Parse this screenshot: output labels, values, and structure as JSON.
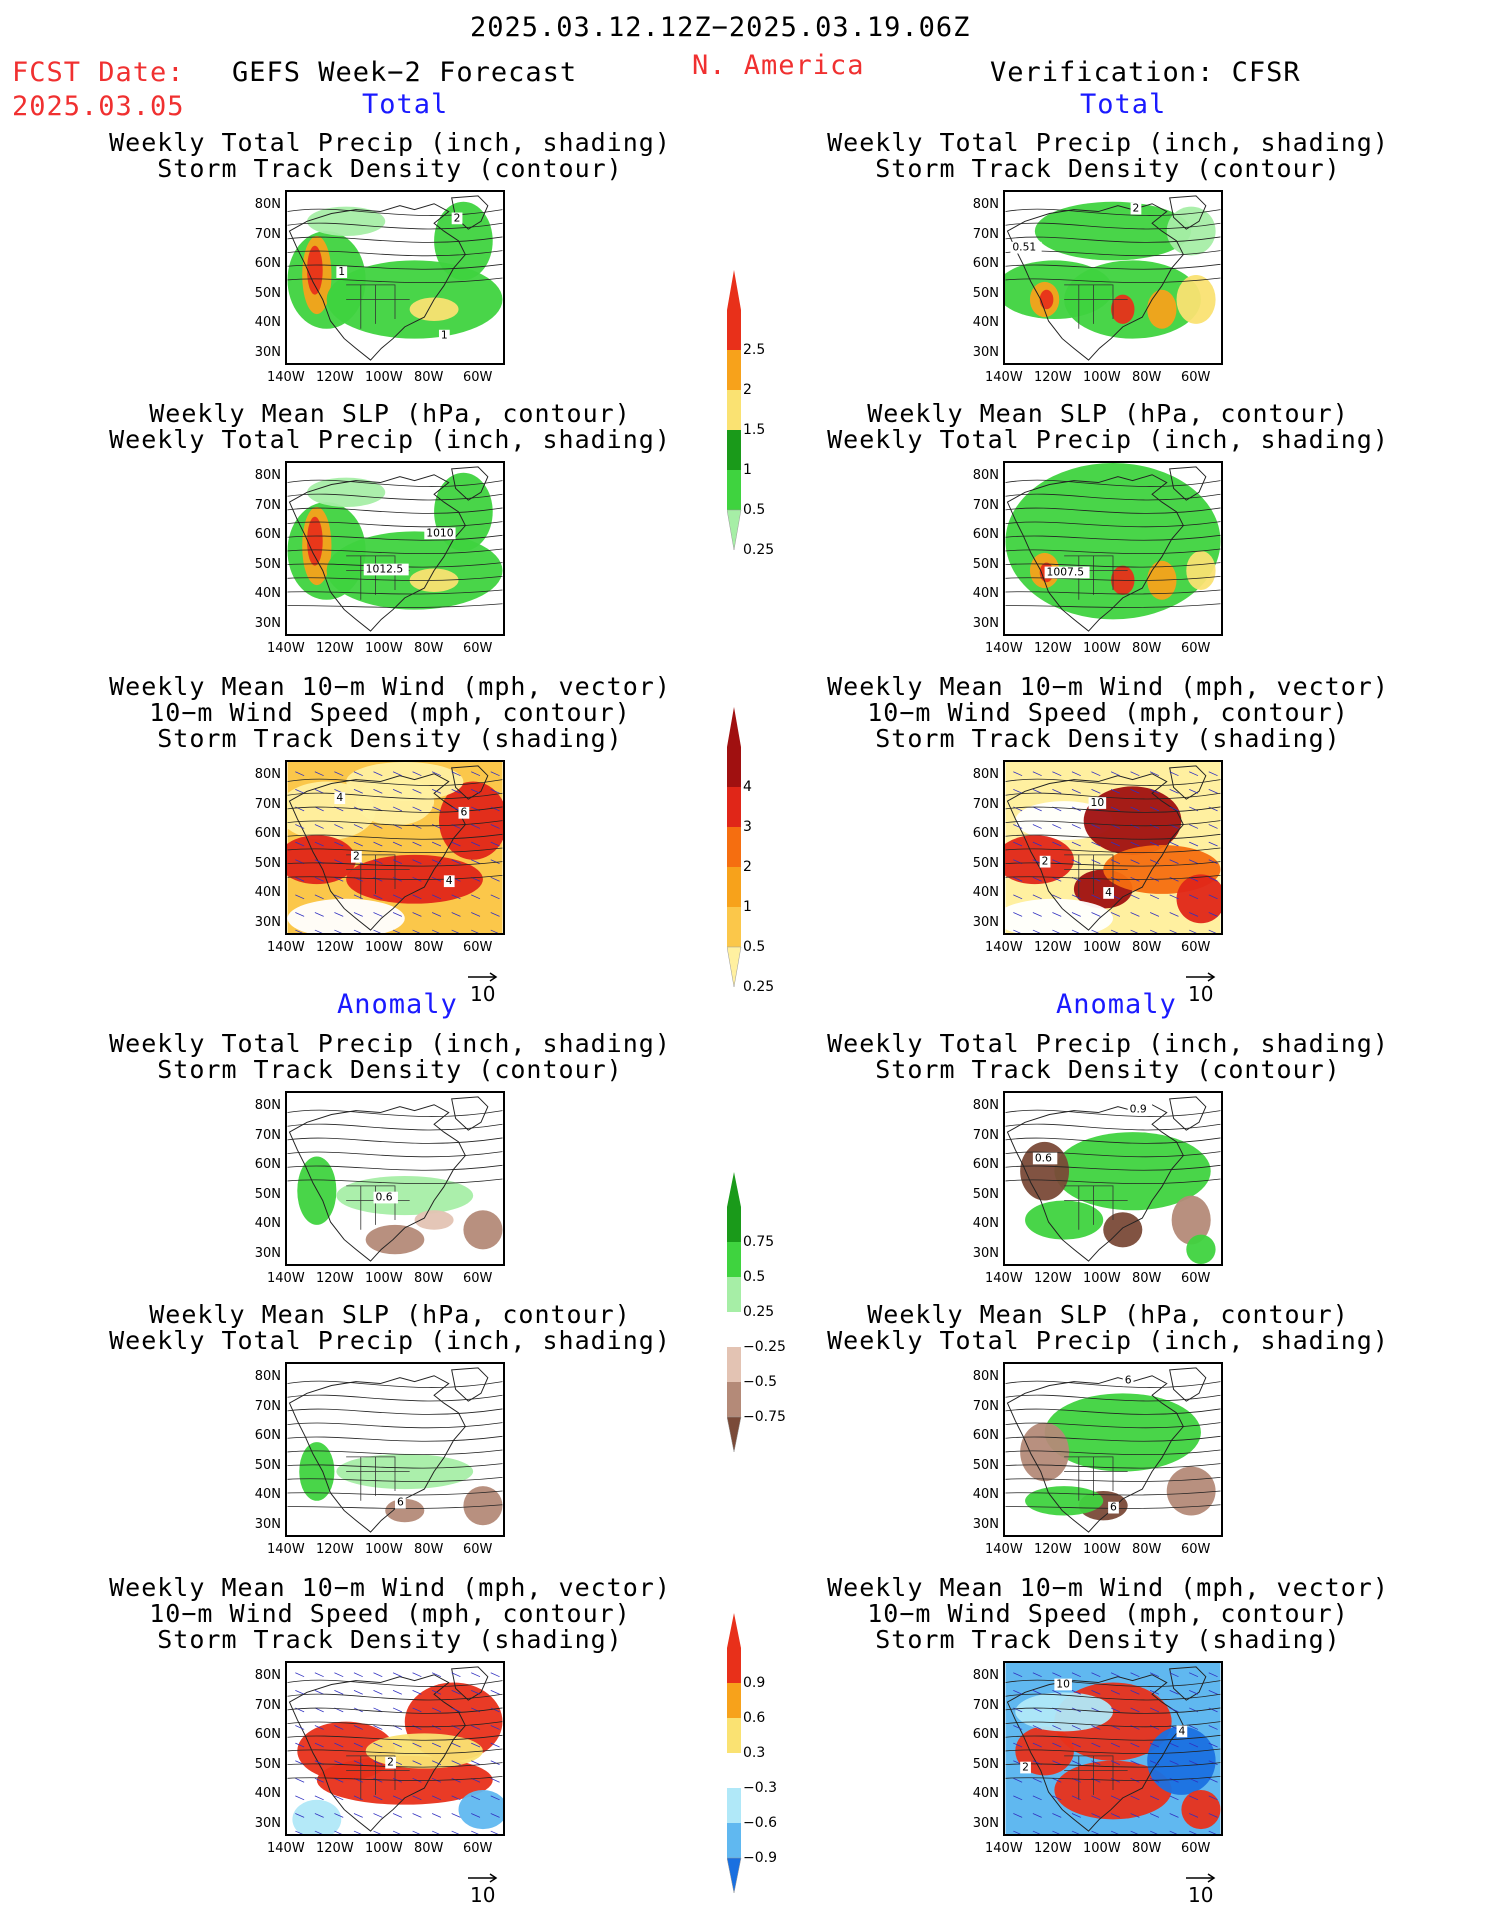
{
  "header": {
    "period": "2025.03.12.12Z−2025.03.19.06Z",
    "fcst_label": "FCST Date:",
    "fcst_date": "2025.03.05",
    "model": "GEFS Week−2 Forecast",
    "region": "N. America",
    "verification": "Verification: CFSR"
  },
  "sections": {
    "total": "Total",
    "anomaly": "Anomaly"
  },
  "titles": {
    "p1a": "Weekly Total Precip (inch, shading)",
    "p1b": "Storm Track Density (contour)",
    "p2a": "Weekly Mean SLP (hPa, contour)",
    "p2b": "Weekly Total Precip (inch, shading)",
    "p3a": "Weekly Mean 10−m Wind (mph, vector)",
    "p3b": "10−m Wind Speed (mph, contour)",
    "p3c": "Storm Track Density (shading)"
  },
  "axes": {
    "lat": [
      "80N",
      "70N",
      "60N",
      "50N",
      "40N",
      "30N"
    ],
    "lon": [
      "140W",
      "120W",
      "100W",
      "80W",
      "60W"
    ]
  },
  "vector_scale": "10",
  "colorbars": {
    "precip_total": {
      "labels": [
        "2.5",
        "2",
        "1.5",
        "1",
        "0.5",
        "0.25"
      ],
      "colors": [
        "#e8301a",
        "#f7a21b",
        "#fae272",
        "#1a9a1a",
        "#3fd33f",
        "#a6eea6"
      ]
    },
    "storm_total": {
      "labels": [
        "4",
        "3",
        "2",
        "1",
        "0.5",
        "0.25"
      ],
      "colors": [
        "#a01010",
        "#e02618",
        "#f56e10",
        "#f7a21b",
        "#fbc74a",
        "#fff0a0"
      ]
    },
    "precip_anom": {
      "labels": [
        "0.75",
        "0.5",
        "0.25",
        "−0.25",
        "−0.5",
        "−0.75"
      ],
      "colors": [
        "#1a9a1a",
        "#3fd33f",
        "#a6eea6",
        "#ffffff",
        "#e3c3b3",
        "#b48a78",
        "#7a4a38"
      ]
    },
    "storm_anom": {
      "labels": [
        "0.9",
        "0.6",
        "0.3",
        "−0.3",
        "−0.6",
        "−0.9"
      ],
      "colors": [
        "#e8301a",
        "#f7a21b",
        "#fae272",
        "#ffffff",
        "#b0e8f8",
        "#60b8f0",
        "#1a70e0"
      ]
    }
  },
  "contour_labels": {
    "r1l": [
      "2",
      "1",
      "1"
    ],
    "r1r": [
      "2",
      "0.51"
    ],
    "r2l": [
      "1010",
      "1012.5"
    ],
    "r2r": [
      "1007.5"
    ],
    "r3l": [
      "4",
      "2",
      "6",
      "4"
    ],
    "r3r": [
      "10",
      "2",
      "4"
    ],
    "r4l": [
      "0.6"
    ],
    "r4r": [
      "0.6",
      "0.9"
    ],
    "r5l": [
      "6"
    ],
    "r5r": [
      "6",
      "6"
    ],
    "r6l": [
      "2"
    ],
    "r6r": [
      "10",
      "4",
      "2"
    ]
  }
}
